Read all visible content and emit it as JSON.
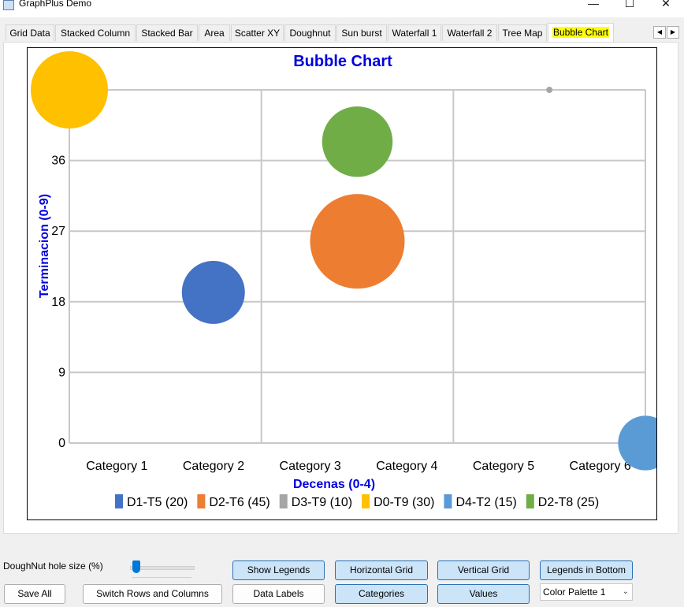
{
  "window": {
    "title": "GraphPlus Demo",
    "min_icon": "minimize-icon",
    "max_icon": "maximize-icon",
    "close_icon": "close-icon"
  },
  "tabs": [
    {
      "label": "Grid Data"
    },
    {
      "label": "Stacked Column"
    },
    {
      "label": "Stacked Bar"
    },
    {
      "label": "Area"
    },
    {
      "label": "Scatter XY"
    },
    {
      "label": "Doughnut"
    },
    {
      "label": "Sun burst"
    },
    {
      "label": "Waterfall 1"
    },
    {
      "label": "Waterfall 2"
    },
    {
      "label": "Tree Map"
    },
    {
      "label": "Bubble Chart",
      "active": true
    }
  ],
  "chart_data": {
    "type": "bubble",
    "title": "Bubble Chart",
    "xlabel": "Decenas (0-4)",
    "ylabel": "Terminacion (0-9)",
    "categories": [
      "Category 1",
      "Category 2",
      "Category 3",
      "Category 4",
      "Category 5",
      "Category 6"
    ],
    "yticks": [
      0,
      9,
      18,
      27,
      36
    ],
    "ylim": [
      0,
      45
    ],
    "xlim": [
      0,
      3
    ],
    "grid": {
      "horizontal": true,
      "vertical": true
    },
    "legend_position": "bottom",
    "title_color": "#0000dd",
    "series": [
      {
        "name": "D1-T5 (20)",
        "x": 0.75,
        "y": 19.2,
        "size": 20,
        "color": "#4472c4"
      },
      {
        "name": "D2-T6 (45)",
        "x": 1.5,
        "y": 25.7,
        "size": 45,
        "color": "#ed7d31"
      },
      {
        "name": "D3-T9 (10)",
        "x": 2.5,
        "y": 45,
        "size": 10,
        "color": "#a5a5a5"
      },
      {
        "name": "D0-T9 (30)",
        "x": 0.0,
        "y": 45,
        "size": 30,
        "color": "#ffc000"
      },
      {
        "name": "D4-T2 (15)",
        "x": 3.0,
        "y": 0,
        "size": 15,
        "color": "#5b9bd5"
      },
      {
        "name": "D2-T8 (25)",
        "x": 1.5,
        "y": 38.4,
        "size": 25,
        "color": "#70ad47"
      }
    ]
  },
  "controls": {
    "doughnut_label": "DoughNut hole size (%)",
    "doughnut_value": 5,
    "save_all": "Save All",
    "switch_rows": "Switch Rows and Columns",
    "show_legends": "Show Legends",
    "data_labels": "Data Labels",
    "horizontal_grid": "Horizontal Grid",
    "categories": "Categories",
    "vertical_grid": "Vertical Grid",
    "values": "Values",
    "legends_bottom": "Legends in Bottom",
    "palette": "Color Palette 1"
  }
}
